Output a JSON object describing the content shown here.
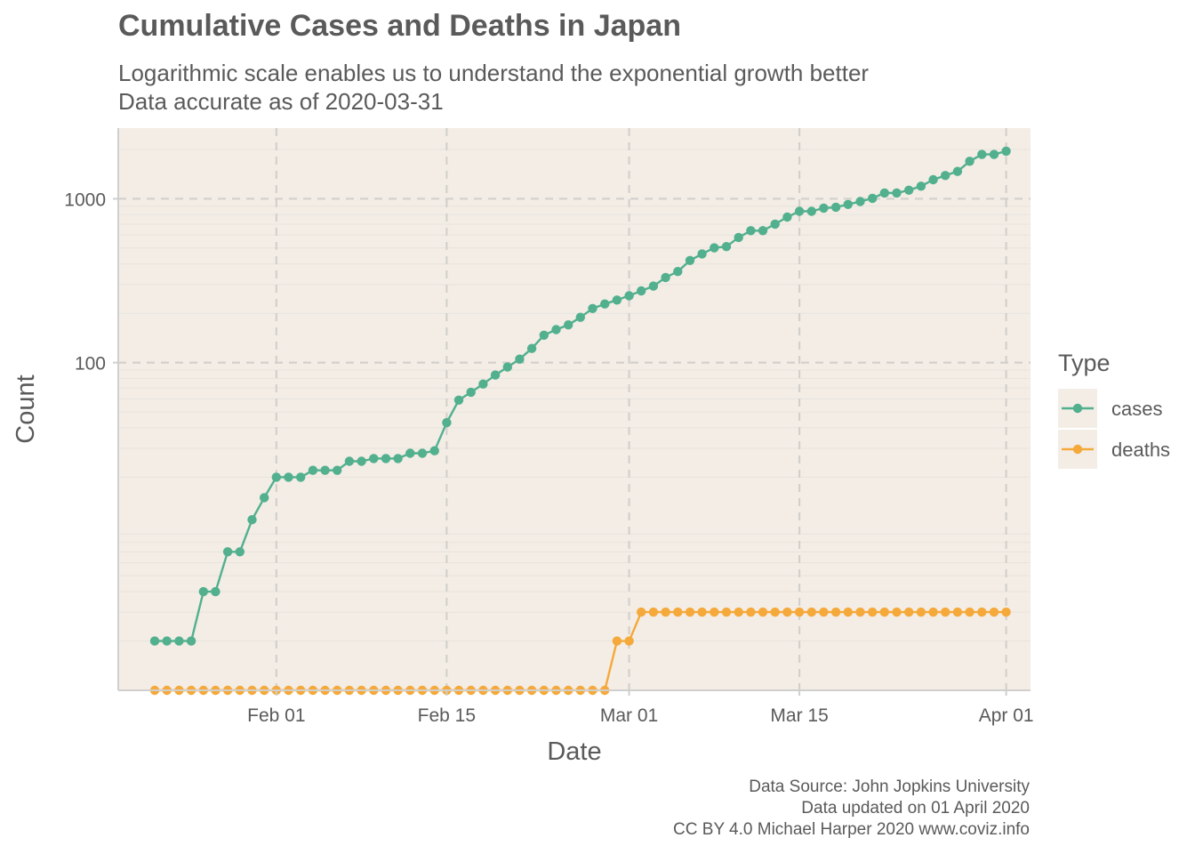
{
  "header": {
    "title": "Cumulative Cases and Deaths in Japan",
    "subtitle_line1": "Logarithmic scale enables us to understand the exponential growth better",
    "subtitle_line2": "Data accurate as of 2020-03-31"
  },
  "caption": {
    "line1": "Data Source: John Jopkins University",
    "line2": "Data updated on 01 April 2020",
    "line3": "CC BY 4.0 Michael Harper 2020 www.coviz.info"
  },
  "colors": {
    "panel_bg": "#f3ede6",
    "cases": "#52b08e",
    "deaths": "#f5a93a",
    "grid_major": "#d3d0cc",
    "grid_minor": "#e8e3dd",
    "axis_line": "#cfcfcf"
  },
  "chart_data": {
    "type": "line",
    "title": "Cumulative Cases and Deaths in Japan",
    "xlabel": "Date",
    "ylabel": "Count",
    "y_scale": "log10",
    "ylim": [
      1,
      2700
    ],
    "x_range": [
      "2020-01-19",
      "2020-04-03"
    ],
    "x_ticks": [
      {
        "date": "2020-02-01",
        "label": "Feb 01"
      },
      {
        "date": "2020-02-15",
        "label": "Feb 15"
      },
      {
        "date": "2020-03-01",
        "label": "Mar 01"
      },
      {
        "date": "2020-03-15",
        "label": "Mar 15"
      },
      {
        "date": "2020-04-01",
        "label": "Apr 01"
      }
    ],
    "y_ticks": [
      {
        "value": 100,
        "label": "100"
      },
      {
        "value": 1000,
        "label": "1000"
      }
    ],
    "grid": true,
    "legend": {
      "title": "Type",
      "position": "right"
    },
    "start_date": "2020-01-22",
    "series": [
      {
        "name": "cases",
        "values": [
          2,
          2,
          2,
          2,
          4,
          4,
          7,
          7,
          11,
          15,
          20,
          20,
          20,
          22,
          22,
          22,
          25,
          25,
          26,
          26,
          26,
          28,
          28,
          29,
          43,
          59,
          66,
          74,
          84,
          94,
          105,
          122,
          147,
          159,
          170,
          189,
          214,
          228,
          241,
          256,
          274,
          293,
          331,
          360,
          420,
          461,
          502,
          511,
          581,
          639,
          639,
          701,
          773,
          839,
          839,
          878,
          889,
          924,
          963,
          1007,
          1086,
          1086,
          1128,
          1193,
          1307,
          1387,
          1468,
          1693,
          1866,
          1866,
          1953
        ]
      },
      {
        "name": "deaths",
        "values": [
          1,
          1,
          1,
          1,
          1,
          1,
          1,
          1,
          1,
          1,
          1,
          1,
          1,
          1,
          1,
          1,
          1,
          1,
          1,
          1,
          1,
          1,
          1,
          1,
          1,
          1,
          1,
          1,
          1,
          1,
          1,
          1,
          1,
          1,
          1,
          1,
          1,
          1,
          2,
          2,
          3,
          3,
          3,
          3,
          3,
          3,
          3,
          3,
          3,
          3,
          3,
          3,
          3,
          3,
          3,
          3,
          3,
          3,
          3,
          3,
          3,
          3,
          3,
          3,
          3,
          3,
          3,
          3,
          3,
          3,
          3
        ]
      }
    ]
  }
}
